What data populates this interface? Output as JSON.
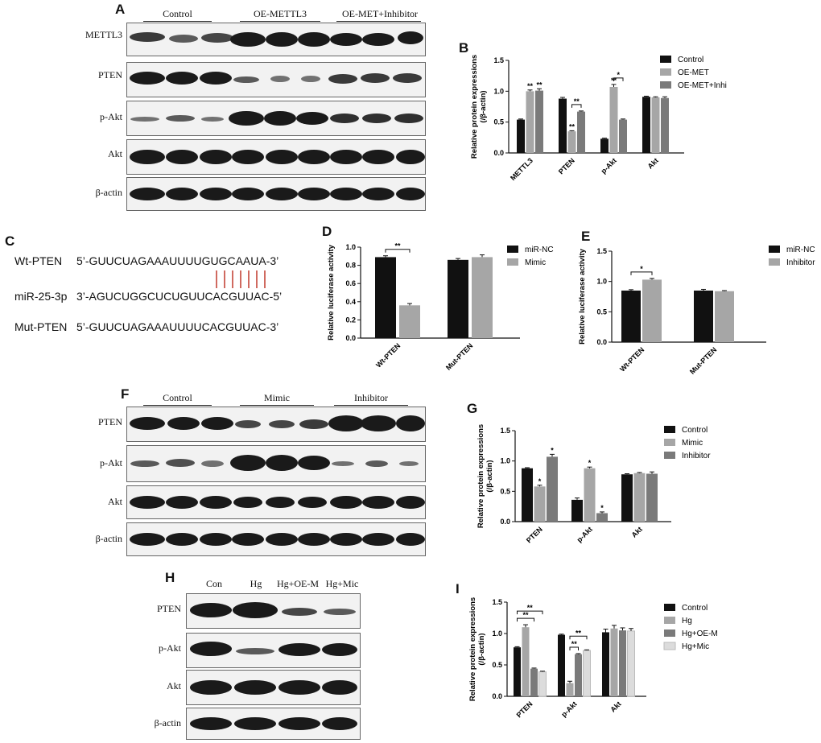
{
  "panels": {
    "A": "A",
    "B": "B",
    "C": "C",
    "D": "D",
    "E": "E",
    "F": "F",
    "G": "G",
    "H": "H",
    "I": "I"
  },
  "panel_a": {
    "groups": [
      "Control",
      "OE-METTL3",
      "OE-MET+Inhibitor"
    ],
    "rows": [
      "METTL3",
      "PTEN",
      "p-Akt",
      "Akt",
      "β-actin"
    ]
  },
  "panel_c": {
    "rows": [
      {
        "label": "Wt-PTEN",
        "seq": "5’-GUUCUAGAAAUUUUGUGCAAUA-3’"
      },
      {
        "label": "miR-25-3p",
        "seq": "3’-AGUCUGGCUCUGUUCACGUUAC-5’"
      },
      {
        "label": "Mut-PTEN",
        "seq": "5’-GUUCUAGAAAUUUUCACGUUAC-3’"
      }
    ],
    "pair_color": "#c0392b"
  },
  "panel_f": {
    "groups": [
      "Control",
      "Mimic",
      "Inhibitor"
    ],
    "rows": [
      "PTEN",
      "p-Akt",
      "Akt",
      "β-actin"
    ]
  },
  "panel_h": {
    "groups": [
      "Con",
      "Hg",
      "Hg+OE-M",
      "Hg+Mic"
    ],
    "rows": [
      "PTEN",
      "p-Akt",
      "Akt",
      "β-actin"
    ]
  },
  "colors": {
    "black": "#111111",
    "gray1": "#a6a6a6",
    "gray2": "#7a7a7a",
    "gray3": "#dcdcdc"
  },
  "chart_data": [
    {
      "id": "B",
      "type": "bar",
      "ylabel": "Relative protein expressions\n(/β-actin)",
      "ylim": [
        0,
        1.5
      ],
      "yticks": [
        "0.0",
        "0.5",
        "1.0",
        "1.5"
      ],
      "categories": [
        "METTL3",
        "PTEN",
        "p-Akt",
        "Akt"
      ],
      "series": [
        {
          "name": "Control",
          "color": "#111111",
          "values": [
            0.54,
            0.88,
            0.23,
            0.91
          ],
          "err": [
            0.01,
            0.02,
            0.01,
            0.01
          ],
          "stars": [
            "",
            "",
            "",
            ""
          ]
        },
        {
          "name": "OE-MET",
          "color": "#a6a6a6",
          "values": [
            1.0,
            0.35,
            1.07,
            0.9
          ],
          "err": [
            0.02,
            0.01,
            0.04,
            0.01
          ],
          "stars": [
            "**",
            "**",
            "**",
            ""
          ]
        },
        {
          "name": "OE-MET+Inhi",
          "color": "#7a7a7a",
          "values": [
            1.01,
            0.67,
            0.54,
            0.89
          ],
          "err": [
            0.03,
            0.01,
            0.01,
            0.02
          ],
          "stars": [
            "**",
            "",
            "",
            ""
          ]
        }
      ],
      "brackets": [
        {
          "cat": 1,
          "from": 1,
          "to": 2,
          "label": "**"
        },
        {
          "cat": 2,
          "from": 1,
          "to": 2,
          "label": "*"
        }
      ],
      "legend": "right"
    },
    {
      "id": "D",
      "type": "bar",
      "ylabel": "Relative luciferase activity",
      "ylim": [
        0,
        1.0
      ],
      "yticks": [
        "0.0",
        "0.2",
        "0.4",
        "0.6",
        "0.8",
        "1.0"
      ],
      "categories": [
        "Wt-PTEN",
        "Mut-PTEN"
      ],
      "series": [
        {
          "name": "miR-NC",
          "color": "#111111",
          "values": [
            0.89,
            0.86
          ],
          "err": [
            0.015,
            0.015
          ],
          "stars": [
            "",
            ""
          ]
        },
        {
          "name": "Mimic",
          "color": "#a6a6a6",
          "values": [
            0.36,
            0.89
          ],
          "err": [
            0.02,
            0.025
          ],
          "stars": [
            "",
            ""
          ]
        }
      ],
      "brackets": [
        {
          "cat": 0,
          "from": 0,
          "to": 1,
          "label": "**"
        }
      ],
      "legend": "right"
    },
    {
      "id": "E",
      "type": "bar",
      "ylabel": "Relative luciferase activity",
      "ylim": [
        0,
        1.5
      ],
      "yticks": [
        "0.0",
        "0.5",
        "1.0",
        "1.5"
      ],
      "categories": [
        "Wt-PTEN",
        "Mut-PTEN"
      ],
      "series": [
        {
          "name": "miR-NC",
          "color": "#111111",
          "values": [
            0.85,
            0.85
          ],
          "err": [
            0.015,
            0.02
          ],
          "stars": [
            "",
            ""
          ]
        },
        {
          "name": "Inhibitor",
          "color": "#a6a6a6",
          "values": [
            1.03,
            0.84
          ],
          "err": [
            0.02,
            0.01
          ],
          "stars": [
            "",
            ""
          ]
        }
      ],
      "brackets": [
        {
          "cat": 0,
          "from": 0,
          "to": 1,
          "label": "*"
        }
      ],
      "legend": "right"
    },
    {
      "id": "G",
      "type": "bar",
      "ylabel": "Relative protein expressions\n(/β-actin)",
      "ylim": [
        0,
        1.5
      ],
      "yticks": [
        "0.0",
        "0.5",
        "1.0",
        "1.5"
      ],
      "categories": [
        "PTEN",
        "p-Akt",
        "Akt"
      ],
      "series": [
        {
          "name": "Control",
          "color": "#111111",
          "values": [
            0.88,
            0.36,
            0.78
          ],
          "err": [
            0.01,
            0.03,
            0.01
          ],
          "stars": [
            "",
            "",
            ""
          ]
        },
        {
          "name": "Mimic",
          "color": "#a6a6a6",
          "values": [
            0.58,
            0.88,
            0.8
          ],
          "err": [
            0.02,
            0.02,
            0.01
          ],
          "stars": [
            "*",
            "*",
            ""
          ]
        },
        {
          "name": "Inhibitor",
          "color": "#7a7a7a",
          "values": [
            1.07,
            0.14,
            0.79
          ],
          "err": [
            0.04,
            0.02,
            0.03
          ],
          "stars": [
            "*",
            "*",
            ""
          ]
        }
      ],
      "brackets": [],
      "legend": "right"
    },
    {
      "id": "I",
      "type": "bar",
      "ylabel": "Relative protein expressions\n(/β-actin)",
      "ylim": [
        0,
        1.5
      ],
      "yticks": [
        "0.0",
        "0.5",
        "1.0",
        "1.5"
      ],
      "categories": [
        "PTEN",
        "p-Akt",
        "Akt"
      ],
      "series": [
        {
          "name": "Control",
          "color": "#111111",
          "values": [
            0.78,
            0.98,
            1.02
          ],
          "err": [
            0.01,
            0.01,
            0.05
          ],
          "stars": [
            "",
            "",
            ""
          ]
        },
        {
          "name": "Hg",
          "color": "#a6a6a6",
          "values": [
            1.1,
            0.21,
            1.08
          ],
          "err": [
            0.04,
            0.03,
            0.05
          ],
          "stars": [
            "",
            "",
            ""
          ]
        },
        {
          "name": "Hg+OE-M",
          "color": "#7a7a7a",
          "values": [
            0.44,
            0.67,
            1.05
          ],
          "err": [
            0.01,
            0.01,
            0.04
          ],
          "stars": [
            "",
            "",
            ""
          ]
        },
        {
          "name": "Hg+Mic",
          "color": "#dcdcdc",
          "values": [
            0.39,
            0.73,
            1.04
          ],
          "err": [
            0.01,
            0.01,
            0.04
          ],
          "stars": [
            "",
            "",
            ""
          ]
        }
      ],
      "brackets": [
        {
          "cat": 0,
          "from": 0,
          "to": 2,
          "label": "**"
        },
        {
          "cat": 0,
          "from": 0,
          "to": 3,
          "label": "**"
        },
        {
          "cat": 1,
          "from": 1,
          "to": 2,
          "label": "**"
        },
        {
          "cat": 1,
          "from": 1,
          "to": 3,
          "label": "**"
        }
      ],
      "legend": "right"
    }
  ]
}
